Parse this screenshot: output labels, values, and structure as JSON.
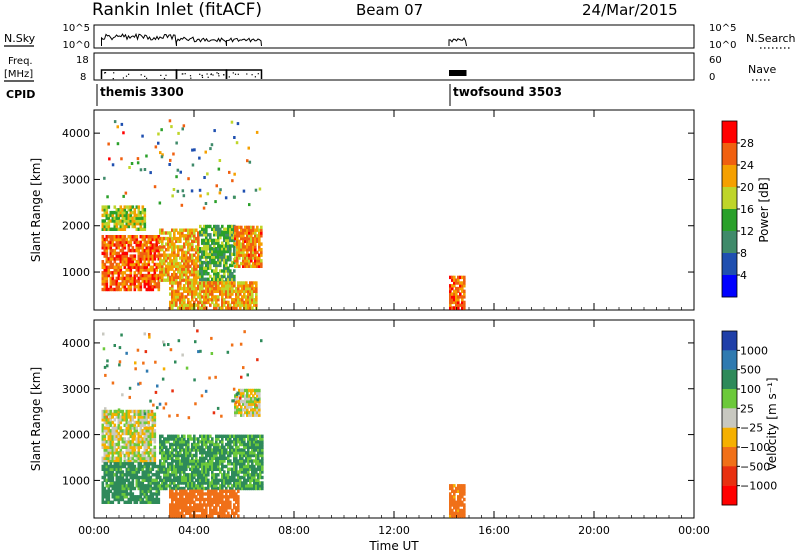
{
  "header": {
    "title": "Rankin Inlet (fitACF)",
    "beam": "Beam 07",
    "date": "24/Mar/2015"
  },
  "top_panels": {
    "nsky": {
      "left_label": "N.Sky",
      "left_ticks": [
        "10^5",
        "10^0"
      ],
      "right_ticks": [
        "10^5",
        "10^0"
      ],
      "right_label": "N.Search"
    },
    "freq": {
      "left_label_line1": "Freq.",
      "left_label_line2": "[MHz]",
      "left_ticks": [
        "18",
        "8"
      ],
      "right_ticks": [
        "60",
        "0"
      ],
      "right_label": "Nave"
    },
    "cpid": {
      "label": "CPID",
      "modes": [
        {
          "name": "themis 3300",
          "start_hour": 0.0
        },
        {
          "name": "twofsound 3503",
          "start_hour": 14.2
        }
      ]
    }
  },
  "chart_data": [
    {
      "type": "heatmap",
      "quantity": "Power",
      "ylabel": "Slant Range [km]",
      "yticks": [
        "1000",
        "2000",
        "3000",
        "4000"
      ],
      "ylim": [
        180,
        4500
      ],
      "xlim": [
        0,
        24
      ],
      "colorbar": {
        "label": "Power [dB]",
        "ticks": [
          "4",
          "8",
          "12",
          "16",
          "20",
          "24",
          "28"
        ],
        "colors": [
          "#0000ff",
          "#1f4fb0",
          "#3f8a6a",
          "#2aa02a",
          "#bfd52a",
          "#f5a000",
          "#f06010",
          "#ff0000"
        ]
      },
      "data_blocks": [
        {
          "t0": 0.3,
          "t1": 2.6,
          "r0": 600,
          "r1": 1800,
          "level": 26
        },
        {
          "t0": 2.6,
          "t1": 4.2,
          "r0": 800,
          "r1": 1900,
          "level": 22
        },
        {
          "t0": 4.2,
          "t1": 5.6,
          "r0": 700,
          "r1": 2000,
          "level": 14
        },
        {
          "t0": 5.6,
          "t1": 6.7,
          "r0": 1100,
          "r1": 2000,
          "level": 24
        },
        {
          "t0": 3.0,
          "t1": 6.5,
          "r0": 200,
          "r1": 800,
          "level": 22
        },
        {
          "t0": 0.3,
          "t1": 2.0,
          "r0": 1900,
          "r1": 2400,
          "level": 18
        },
        {
          "t0": 14.2,
          "t1": 14.8,
          "r0": 200,
          "r1": 900,
          "level": 26
        }
      ]
    },
    {
      "type": "heatmap",
      "quantity": "Velocity",
      "ylabel": "Slant Range [km]",
      "yticks": [
        "1000",
        "2000",
        "3000",
        "4000"
      ],
      "ylim": [
        180,
        4500
      ],
      "xlim": [
        0,
        24
      ],
      "colorbar": {
        "label": "Velocity [m s⁻¹]",
        "ticks": [
          "1000",
          "500",
          "100",
          "25",
          "-25",
          "-100",
          "-500",
          "-1000"
        ],
        "colors": [
          "#1f3fa8",
          "#2f7ab0",
          "#2e8a5a",
          "#6cc93a",
          "#c8c8c0",
          "#f5b000",
          "#f07018",
          "#e83010",
          "#ff0000"
        ]
      },
      "data_blocks": [
        {
          "t0": 0.3,
          "t1": 2.4,
          "r0": 1400,
          "r1": 2500,
          "level": 0
        },
        {
          "t0": 0.3,
          "t1": 2.6,
          "r0": 500,
          "r1": 1400,
          "level": 150
        },
        {
          "t0": 2.6,
          "t1": 6.7,
          "r0": 800,
          "r1": 2000,
          "level": 120
        },
        {
          "t0": 3.0,
          "t1": 5.8,
          "r0": 200,
          "r1": 800,
          "level": -200
        },
        {
          "t0": 5.6,
          "t1": 6.6,
          "r0": 2400,
          "r1": 3000,
          "level": 0
        },
        {
          "t0": 14.2,
          "t1": 14.8,
          "r0": 200,
          "r1": 900,
          "level": -150
        }
      ]
    }
  ],
  "x_axis": {
    "ticks": [
      "00:00",
      "04:00",
      "08:00",
      "12:00",
      "16:00",
      "20:00",
      "00:00"
    ],
    "label": "Time UT"
  }
}
